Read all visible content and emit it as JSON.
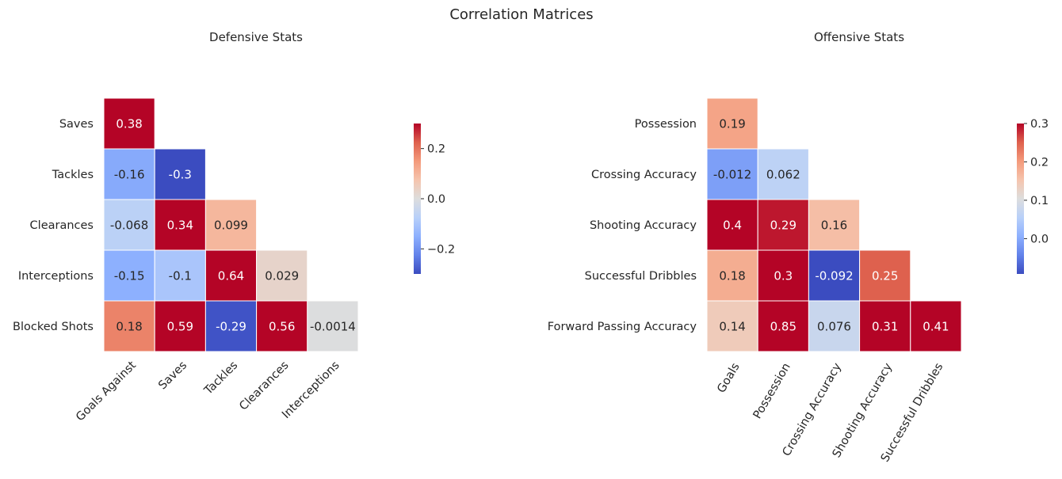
{
  "figure": {
    "title": "Correlation Matrices"
  },
  "chart_data": [
    {
      "type": "heatmap",
      "title": "Defensive Stats",
      "rows": [
        "Saves",
        "Tackles",
        "Clearances",
        "Interceptions",
        "Blocked Shots"
      ],
      "columns": [
        "Goals Against",
        "Saves",
        "Tackles",
        "Clearances",
        "Interceptions"
      ],
      "values": [
        [
          "0.38"
        ],
        [
          "-0.16",
          "-0.3"
        ],
        [
          "-0.068",
          "0.34",
          "0.099"
        ],
        [
          "-0.15",
          "-0.1",
          "0.64",
          "0.029"
        ],
        [
          "0.18",
          "0.59",
          "-0.29",
          "0.56",
          "-0.0014"
        ]
      ],
      "colormap": "coolwarm",
      "vmin": -0.3,
      "vmax": 0.3,
      "colorbar_ticks": [
        "0.2",
        "0.0",
        "−0.2"
      ],
      "mask": "upper-triangle"
    },
    {
      "type": "heatmap",
      "title": "Offensive Stats",
      "rows": [
        "Possession",
        "Crossing Accuracy",
        "Shooting Accuracy",
        "Successful Dribbles",
        "Forward Passing Accuracy"
      ],
      "columns": [
        "Goals",
        "Possession",
        "Crossing Accuracy",
        "Shooting Accuracy",
        "Successful Dribbles"
      ],
      "values": [
        [
          "0.19"
        ],
        [
          "-0.012",
          "0.062"
        ],
        [
          "0.4",
          "0.29",
          "0.16"
        ],
        [
          "0.18",
          "0.3",
          "-0.092",
          "0.25"
        ],
        [
          "0.14",
          "0.85",
          "0.076",
          "0.31",
          "0.41"
        ]
      ],
      "colormap": "coolwarm",
      "vmin": -0.092,
      "vmax": 0.3,
      "colorbar_ticks": [
        "0.3",
        "0.2",
        "0.1",
        "0.0"
      ],
      "mask": "upper-triangle"
    }
  ]
}
